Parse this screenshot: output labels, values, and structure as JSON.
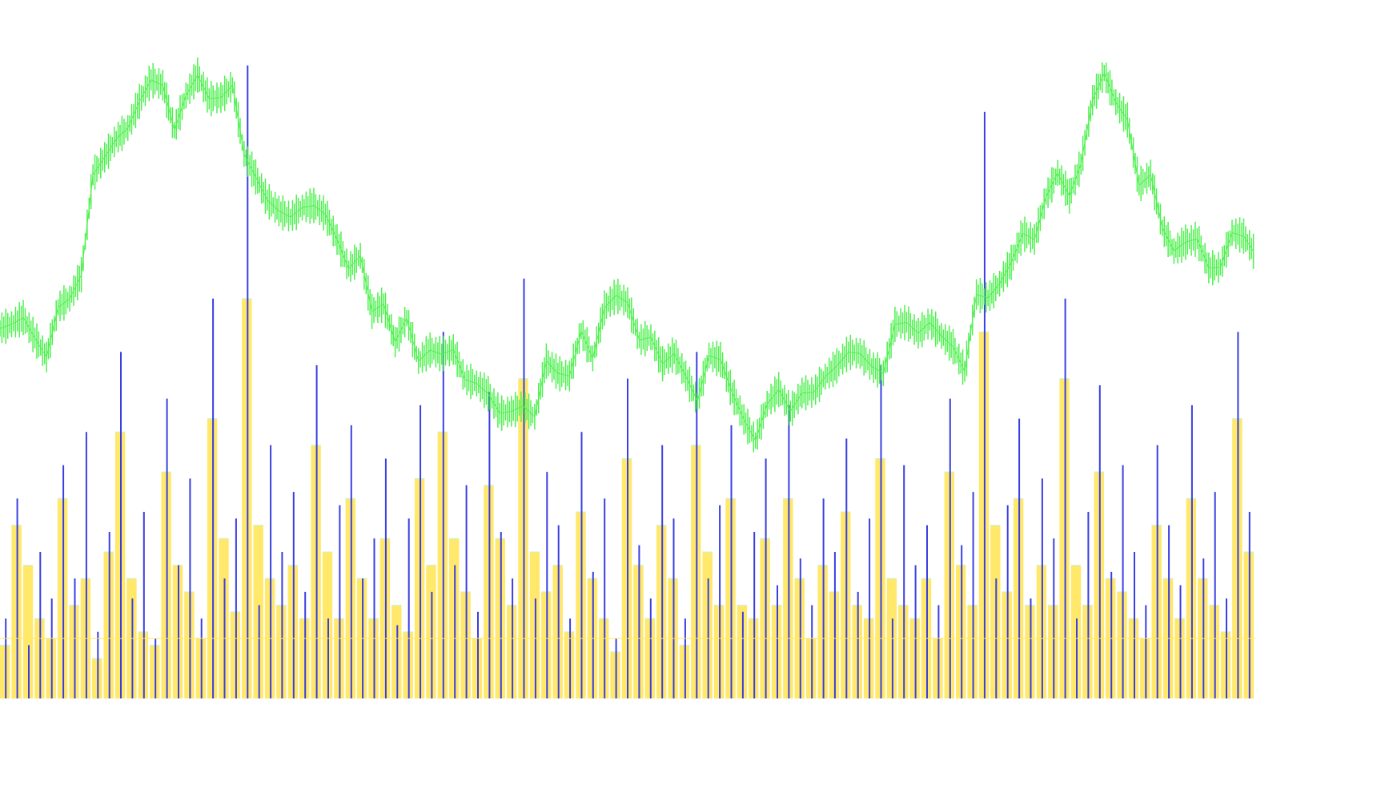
{
  "chart_data": {
    "type": "bar",
    "title": "",
    "xlabel": "",
    "ylabel": "",
    "grid": false,
    "legend": "none",
    "ylim_volume": [
      0,
      100
    ],
    "ylim_price": [
      0,
      100
    ],
    "volume_reference_level": 9,
    "colors": {
      "background": "#ffffff",
      "volume_bars": "#3a3fe0",
      "average_volume": "#ffe86a",
      "average_volume_outline": "#bff5f5",
      "price_line": "#4ff04f",
      "reference_line": "#ffe86a"
    },
    "series": [
      {
        "kind": "price",
        "values": [
          56.6,
          57.2,
          58.2,
          55.2,
          52.4,
          59.7,
          61.0,
          64.5,
          79.2,
          81.8,
          84.5,
          86.1,
          90.0,
          93.2,
          92.4,
          85.8,
          90.9,
          93.9,
          90.4,
          90.6,
          92.4,
          82.3,
          78.9,
          75.5,
          73.9,
          73.0,
          74.4,
          74.7,
          73.4,
          69.7,
          65.4,
          67.3,
          59.1,
          60.2,
          54.6,
          58.1,
          51.8,
          53.4,
          52.8,
          53.5,
          49.1,
          48.5,
          47.0,
          44.1,
          44.4,
          45.2,
          43.6,
          51.8,
          50.0,
          49.6,
          56.2,
          52.2,
          59.6,
          61.5,
          60.4,
          54.9,
          55.3,
          51.4,
          52.9,
          49.6,
          45.9,
          52.6,
          52.0,
          47.1,
          43.2,
          40.1,
          45.5,
          47.6,
          44.4,
          47.1,
          47.2,
          49.5,
          51.1,
          53.1,
          52.9,
          51.0,
          50.0,
          57.2,
          57.5,
          55.9,
          57.5,
          55.5,
          53.9,
          50.3,
          61.6,
          61.1,
          63.2,
          66.3,
          70.6,
          69.7,
          76.0,
          79.5,
          76.1,
          80.8,
          90.2,
          94.2,
          89.9,
          87.3,
          77.7,
          79.2,
          71.4,
          68.0,
          69.3,
          69.8,
          65.5,
          65.6,
          70.7,
          70.2,
          67.5
        ]
      },
      {
        "kind": "volume",
        "values": [
          12,
          30,
          8,
          22,
          15,
          35,
          18,
          40,
          10,
          25,
          52,
          15,
          28,
          9,
          45,
          20,
          33,
          12,
          60,
          18,
          27,
          95,
          14,
          38,
          22,
          31,
          16,
          50,
          12,
          29,
          41,
          18,
          24,
          36,
          11,
          27,
          44,
          16,
          55,
          20,
          32,
          13,
          46,
          25,
          18,
          63,
          15,
          34,
          26,
          12,
          40,
          19,
          30,
          9,
          48,
          23,
          15,
          38,
          27,
          12,
          52,
          18,
          29,
          41,
          13,
          25,
          36,
          17,
          44,
          21,
          14,
          30,
          22,
          39,
          16,
          27,
          50,
          12,
          35,
          20,
          26,
          14,
          45,
          23,
          31,
          88,
          18,
          29,
          42,
          15,
          33,
          24,
          60,
          12,
          28,
          47,
          19,
          35,
          22,
          14,
          38,
          26,
          17,
          44,
          21,
          31,
          15,
          55,
          28
        ]
      },
      {
        "kind": "average_volume",
        "values": [
          8,
          26,
          20,
          12,
          9,
          30,
          14,
          18,
          6,
          22,
          40,
          18,
          10,
          8,
          34,
          20,
          16,
          9,
          42,
          24,
          13,
          60,
          26,
          18,
          14,
          20,
          12,
          38,
          22,
          12,
          30,
          18,
          12,
          24,
          14,
          10,
          33,
          20,
          40,
          24,
          16,
          9,
          32,
          24,
          14,
          48,
          22,
          16,
          20,
          10,
          28,
          18,
          12,
          7,
          36,
          20,
          12,
          26,
          18,
          8,
          38,
          22,
          14,
          30,
          14,
          12,
          24,
          14,
          30,
          18,
          9,
          20,
          16,
          28,
          14,
          12,
          36,
          18,
          14,
          12,
          18,
          9,
          34,
          20,
          14,
          55,
          26,
          16,
          30,
          14,
          20,
          14,
          48,
          20,
          14,
          34,
          18,
          16,
          12,
          9,
          26,
          18,
          12,
          30,
          18,
          14,
          10,
          42,
          22
        ]
      }
    ]
  }
}
